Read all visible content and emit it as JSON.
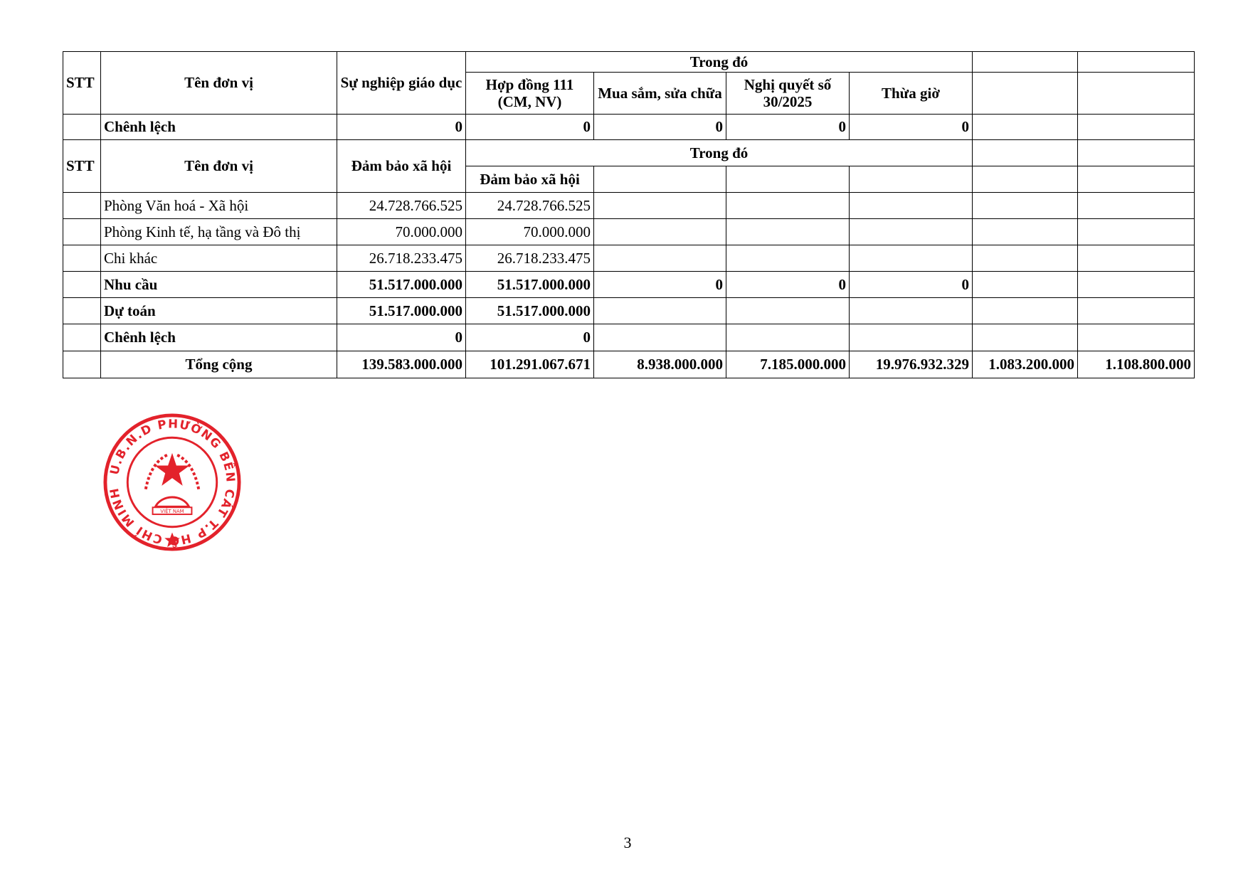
{
  "table": {
    "header1": {
      "stt": "STT",
      "name": "Tên đơn vị",
      "col1": "Sự nghiệp giáo dục",
      "group": "Trong đó",
      "sub": [
        "Hợp đồng 111 (CM, NV)",
        "Mua sắm, sửa chữa",
        "Nghị quyết số 30/2025",
        "Thừa giờ"
      ]
    },
    "row_diff1": {
      "label": "Chênh lệch",
      "values": [
        "0",
        "0",
        "0",
        "0",
        "0"
      ]
    },
    "header2": {
      "stt": "STT",
      "name": "Tên đơn vị",
      "col1": "Đảm bảo xã hội",
      "group": "Trong đó",
      "sub": "Đảm bảo xã hội"
    },
    "rows": [
      {
        "label": "Phòng Văn hoá - Xã hội",
        "v1": "24.728.766.525",
        "v2": "24.728.766.525"
      },
      {
        "label": "Phòng Kinh tế, hạ tầng và Đô thị",
        "v1": "70.000.000",
        "v2": "70.000.000"
      },
      {
        "label": "Chi khác",
        "v1": "26.718.233.475",
        "v2": "26.718.233.475"
      }
    ],
    "need": {
      "label": "Nhu cầu",
      "values": [
        "51.517.000.000",
        "51.517.000.000",
        "0",
        "0",
        "0"
      ]
    },
    "estimate": {
      "label": "Dự toán",
      "values": [
        "51.517.000.000",
        "51.517.000.000"
      ]
    },
    "diff2": {
      "label": "Chênh lệch",
      "values": [
        "0",
        "0"
      ]
    },
    "total": {
      "label": "Tổng cộng",
      "values": [
        "139.583.000.000",
        "101.291.067.671",
        "8.938.000.000",
        "7.185.000.000",
        "19.976.932.329",
        "1.083.200.000",
        "1.108.800.000"
      ]
    }
  },
  "stamp": {
    "text": "U.B.N.D PHƯỜNG BẾN CÁT T.P HỒ CHÍ MINH",
    "emblem": "VIỆT NAM",
    "color": "#e3222b"
  },
  "page_number": "3"
}
